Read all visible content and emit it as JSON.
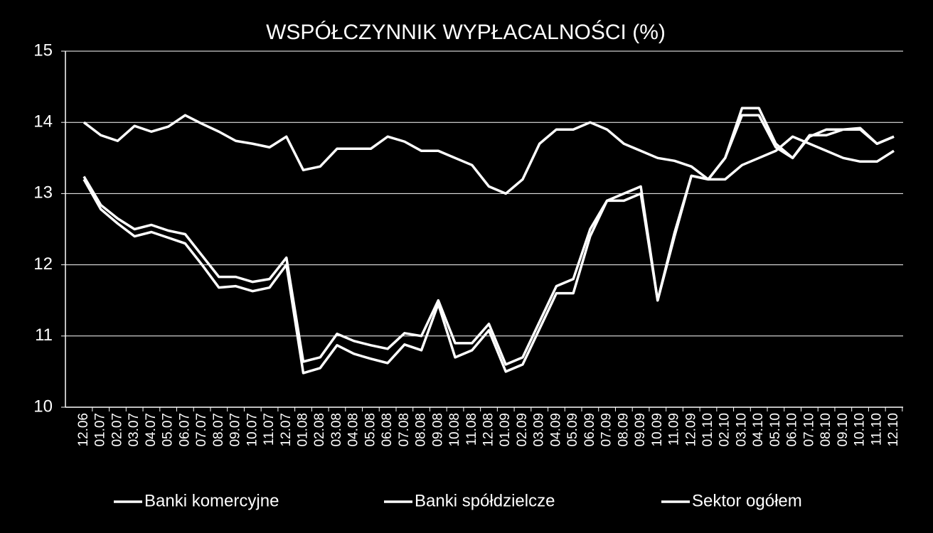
{
  "chart_data": {
    "type": "line",
    "title": "WSPÓŁCZYNNIK WYPŁACALNOŚCI (%)",
    "categories": [
      "12.06",
      "01.07",
      "02.07",
      "03.07",
      "04.07",
      "05.07",
      "06.07",
      "07.07",
      "08.07",
      "09.07",
      "10.07",
      "11.07",
      "12.07",
      "01.08",
      "02.08",
      "03.08",
      "04.08",
      "05.08",
      "06.08",
      "07.08",
      "08.08",
      "09.08",
      "10.08",
      "11.08",
      "12.08",
      "01.09",
      "02.09",
      "03.09",
      "04.09",
      "05.09",
      "06.09",
      "07.09",
      "08.09",
      "09.09",
      "10.09",
      "11.09",
      "12.09",
      "01.10",
      "02.10",
      "03.10",
      "04.10",
      "05.10",
      "06.10",
      "07.10",
      "08.10",
      "09.10",
      "10.10",
      "11.10",
      "12.10"
    ],
    "series": [
      {
        "name": "Banki komercyjne",
        "color": "#ffffff",
        "values": [
          13.2,
          12.78,
          12.58,
          12.4,
          12.46,
          12.38,
          12.3,
          12.0,
          11.68,
          11.7,
          11.63,
          11.68,
          12.0,
          10.48,
          10.55,
          10.87,
          10.75,
          10.68,
          10.62,
          10.88,
          10.8,
          11.45,
          10.7,
          10.8,
          11.08,
          10.5,
          10.6,
          11.1,
          11.6,
          11.6,
          12.4,
          12.9,
          12.9,
          13.0,
          11.5,
          12.4,
          13.25,
          13.2,
          13.5,
          14.2,
          14.2,
          13.7,
          13.5,
          13.82,
          13.82,
          13.9,
          13.9,
          13.7,
          13.8
        ]
      },
      {
        "name": "Banki spółdzielcze",
        "color": "#ffffff",
        "values": [
          14.0,
          13.82,
          13.74,
          13.95,
          13.87,
          13.94,
          14.1,
          13.98,
          13.87,
          13.74,
          13.7,
          13.65,
          13.8,
          13.33,
          13.38,
          13.63,
          13.63,
          13.63,
          13.8,
          13.73,
          13.6,
          13.6,
          13.5,
          13.4,
          13.1,
          13.0,
          13.2,
          13.7,
          13.9,
          13.9,
          14.0,
          13.9,
          13.7,
          13.6,
          13.5,
          13.46,
          13.38,
          13.2,
          13.2,
          13.4,
          13.5,
          13.6,
          13.8,
          13.7,
          13.6,
          13.5,
          13.45,
          13.45,
          13.6
        ]
      },
      {
        "name": "Sektor ogółem",
        "color": "#ffffff",
        "values": [
          13.24,
          12.84,
          12.65,
          12.5,
          12.56,
          12.48,
          12.43,
          12.13,
          11.83,
          11.83,
          11.76,
          11.8,
          12.1,
          10.64,
          10.7,
          11.03,
          10.93,
          10.87,
          10.82,
          11.04,
          11.0,
          11.5,
          10.9,
          10.9,
          11.17,
          10.6,
          10.7,
          11.2,
          11.7,
          11.8,
          12.5,
          12.9,
          13.0,
          13.1,
          11.5,
          12.45,
          13.25,
          13.2,
          13.5,
          14.1,
          14.1,
          13.65,
          13.5,
          13.8,
          13.9,
          13.9,
          13.92,
          13.7,
          13.8
        ]
      }
    ],
    "ylim": [
      10,
      15
    ],
    "yticks": [
      10,
      11,
      12,
      13,
      14,
      15
    ],
    "grid": true,
    "legend": "bottom"
  }
}
